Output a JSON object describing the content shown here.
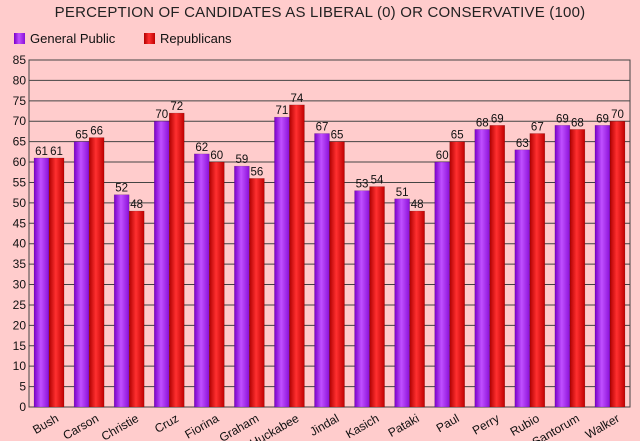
{
  "chart_data": {
    "type": "bar",
    "title": "PERCEPTION OF CANDIDATES AS LIBERAL (0) OR CONSERVATIVE (100)",
    "xlabel": "",
    "ylabel": "",
    "ylim": [
      0,
      85
    ],
    "yticks": [
      0,
      5,
      10,
      15,
      20,
      25,
      30,
      35,
      40,
      45,
      50,
      55,
      60,
      65,
      70,
      75,
      80,
      85
    ],
    "grid": true,
    "legend_position": "top-left",
    "categories": [
      "Bush",
      "Carson",
      "Christie",
      "Cruz",
      "Fiorina",
      "Graham",
      "Huckabee",
      "Jindal",
      "Kasich",
      "Pataki",
      "Paul",
      "Perry",
      "Rubio",
      "Santorum",
      "Walker"
    ],
    "series": [
      {
        "name": "General Public",
        "color": "#a020f0",
        "values": [
          61,
          65,
          52,
          70,
          62,
          59,
          71,
          67,
          53,
          51,
          60,
          68,
          63,
          69,
          69
        ]
      },
      {
        "name": "Republicans",
        "color": "#dd0000",
        "values": [
          61,
          66,
          48,
          72,
          60,
          56,
          74,
          65,
          54,
          48,
          65,
          69,
          67,
          68,
          70
        ]
      }
    ]
  }
}
